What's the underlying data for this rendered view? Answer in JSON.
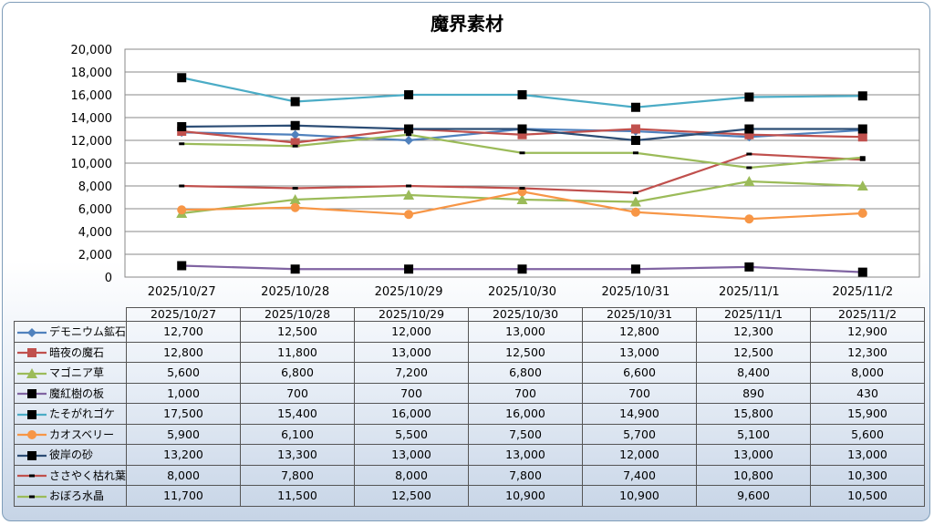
{
  "chart_data": {
    "type": "line",
    "title": "魔界素材",
    "categories": [
      "2025/10/27",
      "2025/10/28",
      "2025/10/29",
      "2025/10/30",
      "2025/10/31",
      "2025/11/1",
      "2025/11/2"
    ],
    "ylim": [
      0,
      20000
    ],
    "yticks": [
      "0",
      "2,000",
      "4,000",
      "6,000",
      "8,000",
      "10,000",
      "12,000",
      "14,000",
      "16,000",
      "18,000",
      "20,000"
    ],
    "grid": true,
    "legend": "data-table",
    "series": [
      {
        "name": "デモニウム鉱石",
        "color": "#4f81bd",
        "marker": "diamond",
        "values": [
          12700,
          12500,
          12000,
          13000,
          12800,
          12300,
          12900
        ],
        "labels": [
          "12,700",
          "12,500",
          "12,000",
          "13,000",
          "12,800",
          "12,300",
          "12,900"
        ]
      },
      {
        "name": "暗夜の魔石",
        "color": "#c0504d",
        "marker": "square",
        "values": [
          12800,
          11800,
          13000,
          12500,
          13000,
          12500,
          12300
        ],
        "labels": [
          "12,800",
          "11,800",
          "13,000",
          "12,500",
          "13,000",
          "12,500",
          "12,300"
        ]
      },
      {
        "name": "マゴニア草",
        "color": "#9bbb59",
        "marker": "triangle",
        "values": [
          5600,
          6800,
          7200,
          6800,
          6600,
          8400,
          8000
        ],
        "labels": [
          "5,600",
          "6,800",
          "7,200",
          "6,800",
          "6,600",
          "8,400",
          "8,000"
        ]
      },
      {
        "name": "魔紅樹の板",
        "color": "#8064a2",
        "marker": "bigsquare",
        "values": [
          1000,
          700,
          700,
          700,
          700,
          890,
          430
        ],
        "labels": [
          "1,000",
          "700",
          "700",
          "700",
          "700",
          "890",
          "430"
        ]
      },
      {
        "name": "たそがれゴケ",
        "color": "#4bacc6",
        "marker": "bigsquare",
        "values": [
          17500,
          15400,
          16000,
          16000,
          14900,
          15800,
          15900
        ],
        "labels": [
          "17,500",
          "15,400",
          "16,000",
          "16,000",
          "14,900",
          "15,800",
          "15,900"
        ]
      },
      {
        "name": "カオスベリー",
        "color": "#f79646",
        "marker": "circle",
        "values": [
          5900,
          6100,
          5500,
          7500,
          5700,
          5100,
          5600
        ],
        "labels": [
          "5,900",
          "6,100",
          "5,500",
          "7,500",
          "5,700",
          "5,100",
          "5,600"
        ]
      },
      {
        "name": "彼岸の砂",
        "color": "#2c4d75",
        "marker": "bigsquare",
        "values": [
          13200,
          13300,
          13000,
          13000,
          12000,
          13000,
          13000
        ],
        "labels": [
          "13,200",
          "13,300",
          "13,000",
          "13,000",
          "12,000",
          "13,000",
          "13,000"
        ]
      },
      {
        "name": "ささやく枯れ葉",
        "color": "#c0504d",
        "marker": "dash",
        "values": [
          8000,
          7800,
          8000,
          7800,
          7400,
          10800,
          10300
        ],
        "labels": [
          "8,000",
          "7,800",
          "8,000",
          "7,800",
          "7,400",
          "10,800",
          "10,300"
        ]
      },
      {
        "name": "おぼろ水晶",
        "color": "#9bbb59",
        "marker": "dash",
        "values": [
          11700,
          11500,
          12500,
          10900,
          10900,
          9600,
          10500
        ],
        "labels": [
          "11,700",
          "11,500",
          "12,500",
          "10,900",
          "10,900",
          "9,600",
          "10,500"
        ]
      }
    ]
  }
}
